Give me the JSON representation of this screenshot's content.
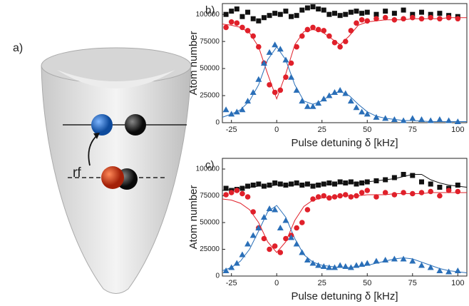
{
  "panel_a": {
    "label": "a)",
    "arrow_label": "rf"
  },
  "chart_data": [
    {
      "type": "scatter",
      "panel_label": "b)",
      "x_label": "Pulse detuning δ [kHz]",
      "y_label": "Atom number",
      "xlim": [
        -30,
        105
      ],
      "ylim": [
        0,
        110000
      ],
      "xticks": [
        -25,
        0,
        25,
        50,
        75,
        100
      ],
      "yticks": [
        0,
        25000,
        50000,
        75000,
        100000
      ],
      "x": [
        -28,
        -25,
        -22,
        -19,
        -16,
        -13,
        -10,
        -7,
        -4,
        -1,
        2,
        5,
        8,
        11,
        14,
        17,
        20,
        23,
        26,
        29,
        32,
        35,
        38,
        41,
        44,
        47,
        50,
        55,
        60,
        65,
        70,
        75,
        80,
        85,
        90,
        95,
        100
      ],
      "series": [
        {
          "color": "#111111",
          "marker": "square",
          "values": [
            100000,
            103000,
            105000,
            98000,
            102000,
            96000,
            94000,
            97000,
            99000,
            101000,
            100000,
            103000,
            98000,
            99000,
            104000,
            106000,
            107000,
            105000,
            104000,
            100000,
            101000,
            99000,
            100000,
            102000,
            103000,
            101000,
            102000,
            100000,
            103000,
            101000,
            104000,
            100000,
            102000,
            100000,
            101000,
            99000,
            98000
          ]
        },
        {
          "color": "#e0202a",
          "marker": "circle",
          "values": [
            88000,
            93000,
            92000,
            88000,
            85000,
            80000,
            70000,
            55000,
            35000,
            28000,
            30000,
            42000,
            55000,
            70000,
            80000,
            86000,
            88000,
            86000,
            85000,
            80000,
            74000,
            70000,
            75000,
            85000,
            92000,
            95000,
            94000,
            96000,
            97000,
            95000,
            96000,
            97000,
            96000,
            97000,
            96000,
            97000,
            96000
          ]
        },
        {
          "color": "#2a6fb8",
          "marker": "triangle",
          "values": [
            12000,
            8000,
            10000,
            12000,
            20000,
            28000,
            40000,
            55000,
            65000,
            72000,
            68000,
            58000,
            42000,
            30000,
            20000,
            15000,
            15000,
            18000,
            22000,
            25000,
            28000,
            30000,
            27000,
            20000,
            14000,
            10000,
            8000,
            5000,
            4000,
            3000,
            2000,
            4000,
            3000,
            2000,
            3000,
            2000,
            1000
          ]
        }
      ],
      "fit_x": [
        -30,
        -25,
        -20,
        -15,
        -10,
        -5,
        0,
        5,
        10,
        15,
        20,
        25,
        30,
        35,
        40,
        45,
        50,
        55,
        60,
        65,
        70,
        75,
        80,
        85,
        90,
        95,
        100,
        105
      ],
      "fits": [
        {
          "color": "#e0202a",
          "values": [
            91000,
            90000,
            88000,
            83000,
            70000,
            45000,
            22000,
            45000,
            72000,
            84000,
            86000,
            84000,
            78000,
            72000,
            80000,
            90000,
            93000,
            94000,
            95000,
            95000,
            95000,
            96000,
            96000,
            96000,
            96000,
            97000,
            97000,
            97000
          ]
        },
        {
          "color": "#2a6fb8",
          "values": [
            5000,
            8000,
            12000,
            20000,
            35000,
            58000,
            70000,
            58000,
            35000,
            20000,
            17000,
            20000,
            26000,
            29000,
            25000,
            17000,
            10000,
            6000,
            4000,
            3000,
            2000,
            2000,
            1500,
            1000,
            1000,
            1000,
            1000,
            1000
          ]
        }
      ]
    },
    {
      "type": "scatter",
      "panel_label": "c)",
      "x_label": "Pulse detuning δ [kHz]",
      "y_label": "Atom number",
      "xlim": [
        -30,
        105
      ],
      "ylim": [
        0,
        110000
      ],
      "xticks": [
        -25,
        0,
        25,
        50,
        75,
        100
      ],
      "yticks": [
        0,
        25000,
        50000,
        75000,
        100000
      ],
      "x": [
        -28,
        -25,
        -22,
        -19,
        -16,
        -13,
        -10,
        -7,
        -4,
        -1,
        2,
        5,
        8,
        11,
        14,
        17,
        20,
        23,
        26,
        29,
        32,
        35,
        38,
        41,
        44,
        47,
        50,
        55,
        60,
        65,
        70,
        75,
        80,
        85,
        90,
        95,
        100
      ],
      "series": [
        {
          "color": "#111111",
          "marker": "square",
          "values": [
            82000,
            80000,
            81000,
            82000,
            84000,
            85000,
            86000,
            84000,
            85000,
            87000,
            86000,
            85000,
            86000,
            87000,
            85000,
            86000,
            84000,
            85000,
            86000,
            87000,
            86000,
            88000,
            87000,
            88000,
            86000,
            87000,
            88000,
            89000,
            90000,
            92000,
            95000,
            94000,
            88000,
            86000,
            83000,
            82000,
            85000
          ]
        },
        {
          "color": "#e0202a",
          "marker": "circle",
          "values": [
            76000,
            78000,
            80000,
            77000,
            74000,
            60000,
            45000,
            35000,
            25000,
            28000,
            22000,
            35000,
            38000,
            45000,
            50000,
            62000,
            72000,
            74000,
            75000,
            73000,
            74000,
            75000,
            76000,
            74000,
            75000,
            78000,
            80000,
            74000,
            78000,
            76000,
            78000,
            77000,
            78000,
            79000,
            75000,
            80000,
            79000
          ]
        },
        {
          "color": "#2a6fb8",
          "marker": "triangle",
          "values": [
            5000,
            8000,
            12000,
            20000,
            30000,
            38000,
            45000,
            55000,
            63000,
            62000,
            45000,
            52000,
            36000,
            30000,
            22000,
            15000,
            12000,
            10000,
            9000,
            8000,
            8000,
            10000,
            9000,
            8000,
            10000,
            11000,
            12000,
            14000,
            15000,
            16000,
            16000,
            14000,
            10000,
            8000,
            5000,
            4000,
            5000
          ]
        }
      ],
      "fit_x": [
        -30,
        -25,
        -20,
        -15,
        -10,
        -5,
        0,
        5,
        10,
        15,
        20,
        25,
        30,
        35,
        40,
        45,
        50,
        55,
        60,
        65,
        70,
        75,
        80,
        85,
        90,
        95,
        100,
        105
      ],
      "fits": [
        {
          "color": "#111111",
          "values": [
            80000,
            81000,
            82000,
            83000,
            84000,
            84000,
            85000,
            85000,
            85000,
            85000,
            86000,
            86000,
            86000,
            86000,
            87000,
            87000,
            88000,
            89000,
            90000,
            91000,
            93000,
            95000,
            95000,
            90000,
            87000,
            85000,
            84000,
            83000
          ]
        },
        {
          "color": "#e0202a",
          "values": [
            72000,
            71000,
            68000,
            62000,
            50000,
            32000,
            22000,
            32000,
            52000,
            65000,
            71000,
            73000,
            74000,
            75000,
            75000,
            75000,
            76000,
            76000,
            76000,
            77000,
            77000,
            77000,
            77000,
            78000,
            78000,
            78000,
            78000,
            78000
          ]
        },
        {
          "color": "#2a6fb8",
          "values": [
            5000,
            8000,
            14000,
            25000,
            42000,
            60000,
            66000,
            55000,
            35000,
            20000,
            13000,
            10000,
            9000,
            8000,
            8000,
            9000,
            10000,
            12000,
            14000,
            16000,
            17000,
            16000,
            13000,
            10000,
            7000,
            5000,
            4000,
            3000
          ]
        }
      ]
    }
  ]
}
